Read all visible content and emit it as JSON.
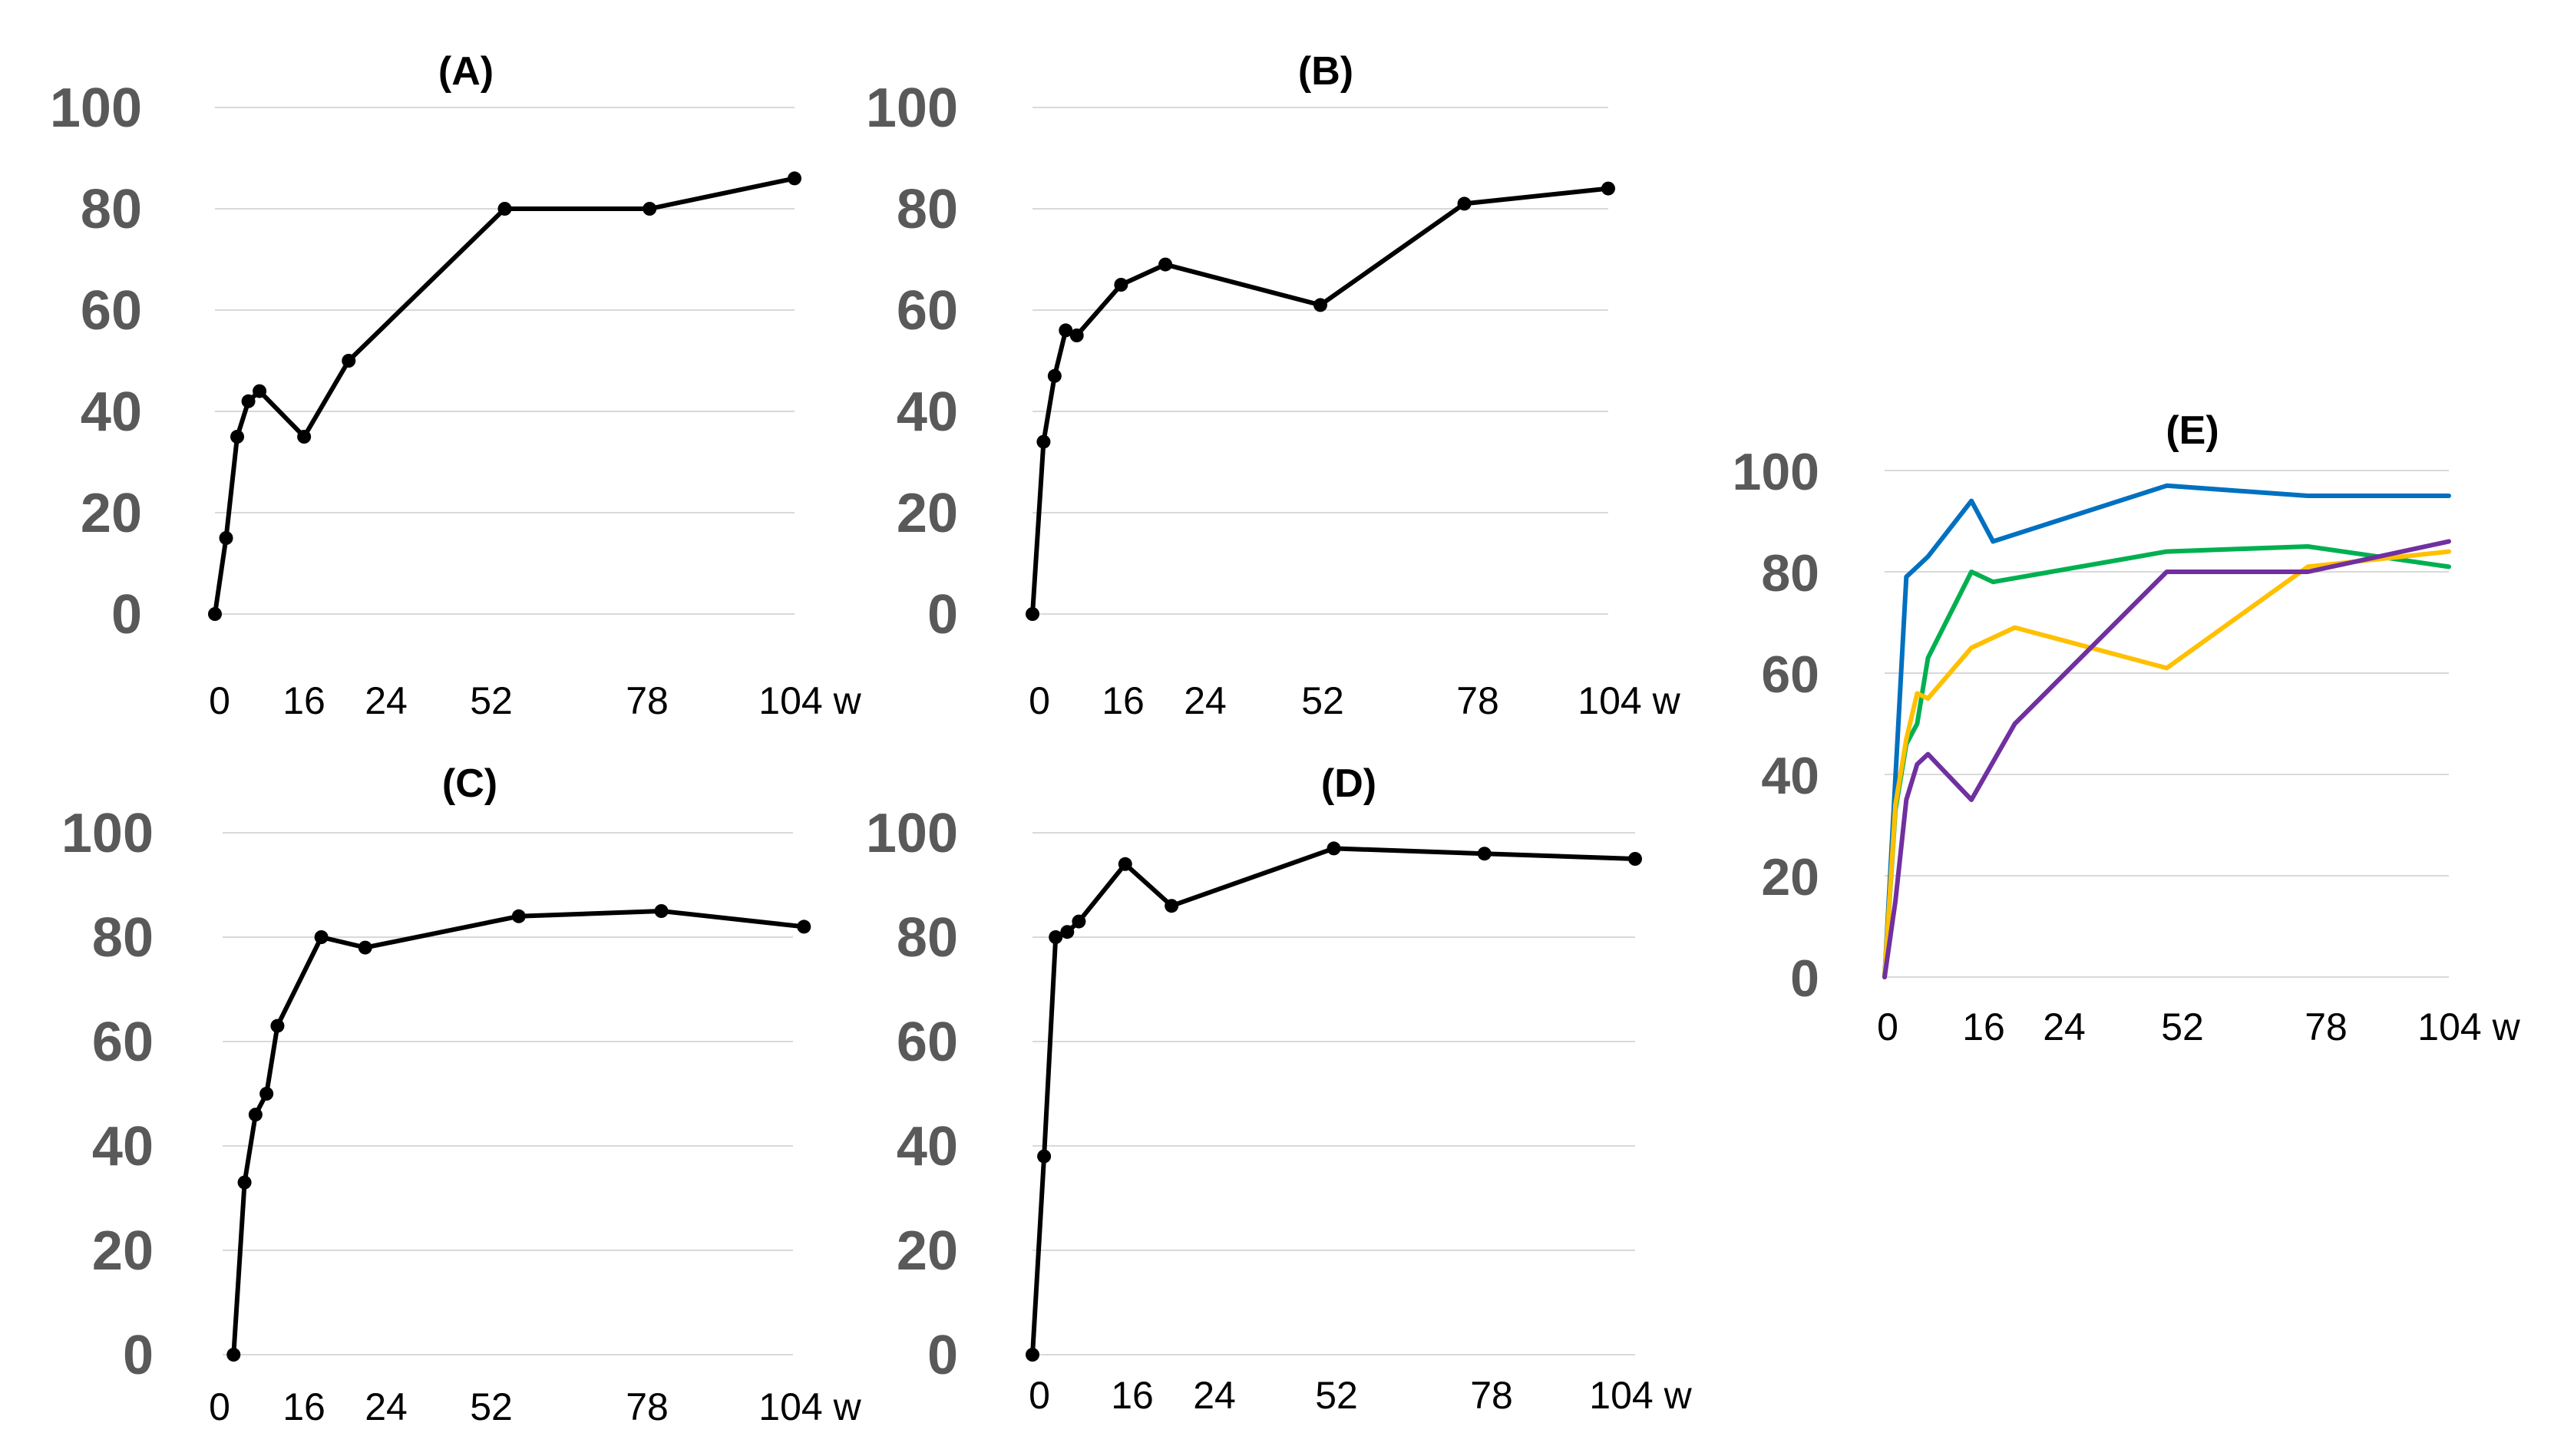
{
  "chart_data": [
    {
      "type": "line",
      "title": "(A)",
      "x_tick_labels": [
        "0",
        "16",
        "24",
        "52",
        "78",
        "104 w"
      ],
      "y_tick_labels": [
        "0",
        "20",
        "40",
        "60",
        "80",
        "100"
      ],
      "ylim": [
        0,
        100
      ],
      "grid": true,
      "markers": true,
      "series": [
        {
          "color": "#000000",
          "x": [
            0,
            2,
            4,
            6,
            8,
            16,
            24,
            52,
            78,
            104
          ],
          "y": [
            0,
            15,
            35,
            42,
            44,
            35,
            50,
            80,
            80,
            86
          ]
        }
      ]
    },
    {
      "type": "line",
      "title": "(B)",
      "x_tick_labels": [
        "0",
        "16",
        "24",
        "52",
        "78",
        "104 w"
      ],
      "y_tick_labels": [
        "0",
        "20",
        "40",
        "60",
        "80",
        "100"
      ],
      "ylim": [
        0,
        100
      ],
      "grid": true,
      "markers": true,
      "series": [
        {
          "color": "#000000",
          "x": [
            0,
            2,
            4,
            6,
            8,
            16,
            24,
            52,
            78,
            104
          ],
          "y": [
            0,
            34,
            47,
            56,
            55,
            65,
            69,
            61,
            81,
            84
          ]
        }
      ]
    },
    {
      "type": "line",
      "title": "(C)",
      "x_tick_labels": [
        "0",
        "16",
        "24",
        "52",
        "78",
        "104 w"
      ],
      "y_tick_labels": [
        "0",
        "20",
        "40",
        "60",
        "80",
        "100"
      ],
      "ylim": [
        0,
        100
      ],
      "grid": true,
      "markers": true,
      "series": [
        {
          "color": "#000000",
          "x": [
            2,
            4,
            6,
            8,
            10,
            18,
            26,
            54,
            80,
            106
          ],
          "y": [
            0,
            33,
            46,
            50,
            63,
            80,
            78,
            84,
            85,
            82
          ]
        }
      ]
    },
    {
      "type": "line",
      "title": "(D)",
      "x_tick_labels": [
        "0",
        "16",
        "24",
        "52",
        "78",
        "104 w"
      ],
      "y_tick_labels": [
        "0",
        "20",
        "40",
        "60",
        "80",
        "100"
      ],
      "ylim": [
        0,
        100
      ],
      "grid": true,
      "markers": true,
      "series": [
        {
          "color": "#000000",
          "x": [
            0,
            2,
            4,
            6,
            8,
            16,
            24,
            52,
            78,
            104
          ],
          "y": [
            0,
            38,
            80,
            81,
            83,
            94,
            86,
            97,
            96,
            95
          ]
        }
      ]
    },
    {
      "type": "line",
      "title": "(E)",
      "x_tick_labels": [
        "0",
        "16",
        "24",
        "52",
        "78",
        "104 w"
      ],
      "y_tick_labels": [
        "0",
        "20",
        "40",
        "60",
        "80",
        "100"
      ],
      "ylim": [
        0,
        100
      ],
      "grid": true,
      "markers": false,
      "series": [
        {
          "color": "#0070c0",
          "x": [
            0,
            4,
            6,
            8,
            16,
            20,
            52,
            78,
            104
          ],
          "y": [
            0,
            79,
            81,
            83,
            94,
            86,
            97,
            95,
            95
          ]
        },
        {
          "color": "#00b050",
          "x": [
            0,
            2,
            4,
            6,
            8,
            16,
            20,
            52,
            78,
            104
          ],
          "y": [
            0,
            33,
            46,
            50,
            63,
            80,
            78,
            84,
            85,
            81
          ]
        },
        {
          "color": "#ffc000",
          "x": [
            0,
            2,
            4,
            6,
            8,
            16,
            24,
            52,
            78,
            104
          ],
          "y": [
            0,
            34,
            47,
            56,
            55,
            65,
            69,
            61,
            81,
            84
          ]
        },
        {
          "color": "#7030a0",
          "x": [
            0,
            2,
            4,
            6,
            8,
            16,
            24,
            52,
            78,
            104
          ],
          "y": [
            0,
            15,
            35,
            42,
            44,
            35,
            50,
            80,
            80,
            86
          ]
        }
      ]
    }
  ]
}
